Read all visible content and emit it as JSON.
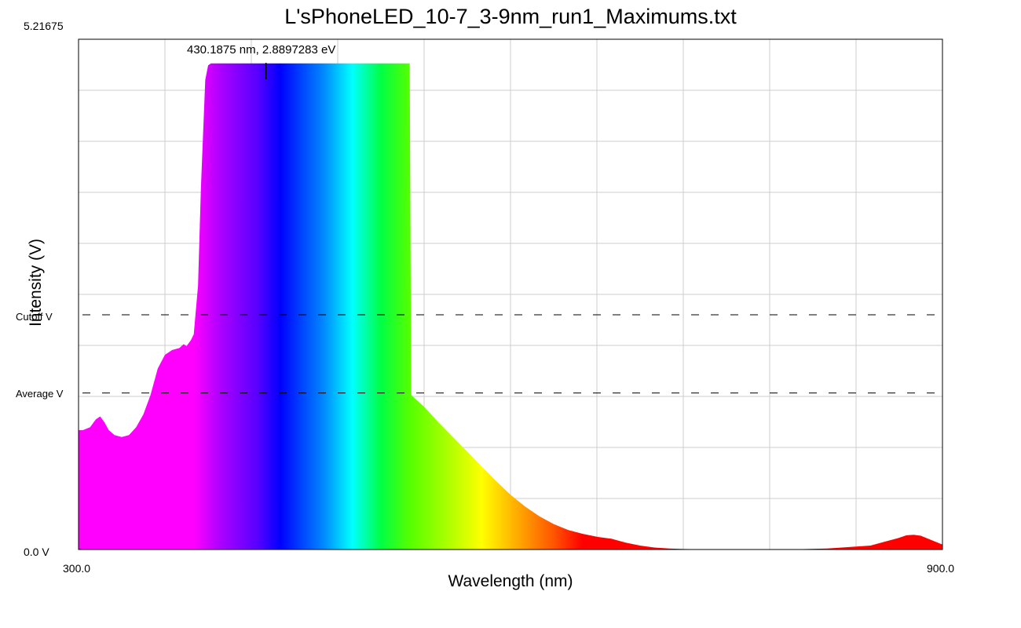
{
  "chart_data": {
    "type": "area",
    "title": "L'sPhoneLED_10-7_3-9nm_run1_Maximums.txt",
    "xlabel": "Wavelength (nm)",
    "ylabel": "Intensity (V)",
    "xlim": [
      300.0,
      900.0
    ],
    "ylim": [
      0.0,
      5.21675
    ],
    "x_tick_labels": [
      "300.0",
      "900.0"
    ],
    "y_tick_labels": [
      "0.0 V",
      "5.21675"
    ],
    "grid": true,
    "fill": "visible-spectrum gradient under curve",
    "reference_lines": [
      {
        "label": "Cutoff V",
        "value": 2.4
      },
      {
        "label": "Average V",
        "value": 1.6
      }
    ],
    "peak_annotation": {
      "text": "430.1875 nm, 2.8897283 eV",
      "x": 430.1875
    },
    "series": [
      {
        "x": [
          300,
          303,
          308,
          312,
          315,
          318,
          321,
          325,
          330,
          335,
          340,
          345,
          350,
          355,
          360,
          365,
          370,
          373,
          375,
          378,
          380,
          383,
          385,
          388,
          390,
          392,
          393,
          394,
          396,
          398,
          399,
          400,
          420,
          450,
          480,
          500,
          520,
          530,
          531,
          540,
          550,
          560,
          570,
          580,
          590,
          600,
          610,
          620,
          630,
          640,
          650,
          660,
          670,
          680,
          690,
          700,
          710,
          720,
          730,
          750,
          770,
          790,
          800,
          820,
          850,
          860,
          870,
          875,
          880,
          885,
          890,
          895,
          900
        ],
        "values": [
          1.22,
          1.22,
          1.25,
          1.33,
          1.36,
          1.3,
          1.22,
          1.17,
          1.15,
          1.17,
          1.25,
          1.38,
          1.58,
          1.85,
          1.99,
          2.04,
          2.06,
          2.1,
          2.08,
          2.14,
          2.2,
          2.7,
          3.7,
          4.8,
          4.95,
          4.97,
          4.97,
          4.97,
          4.97,
          4.97,
          4.97,
          4.97,
          4.97,
          4.97,
          4.97,
          4.97,
          4.97,
          4.97,
          1.58,
          1.46,
          1.3,
          1.15,
          1.0,
          0.85,
          0.7,
          0.56,
          0.44,
          0.34,
          0.26,
          0.2,
          0.16,
          0.13,
          0.11,
          0.07,
          0.04,
          0.02,
          0.01,
          0.005,
          0.003,
          0.002,
          0.002,
          0.002,
          0.003,
          0.01,
          0.04,
          0.08,
          0.12,
          0.145,
          0.15,
          0.14,
          0.11,
          0.08,
          0.05
        ]
      }
    ]
  },
  "colors": {
    "grid": "#cccccc",
    "background": "#ffffff",
    "axis": "#000000",
    "spectrum_stops": [
      {
        "nm": 300,
        "color": "#ff00ff"
      },
      {
        "nm": 380,
        "color": "#ff00ff"
      },
      {
        "nm": 400,
        "color": "#a600ff"
      },
      {
        "nm": 425,
        "color": "#5500ff"
      },
      {
        "nm": 440,
        "color": "#0000ff"
      },
      {
        "nm": 470,
        "color": "#0088ff"
      },
      {
        "nm": 490,
        "color": "#00ffff"
      },
      {
        "nm": 510,
        "color": "#00ff44"
      },
      {
        "nm": 530,
        "color": "#55ff00"
      },
      {
        "nm": 560,
        "color": "#b8ff00"
      },
      {
        "nm": 580,
        "color": "#ffff00"
      },
      {
        "nm": 600,
        "color": "#ffbb00"
      },
      {
        "nm": 630,
        "color": "#ff5500"
      },
      {
        "nm": 650,
        "color": "#ff0000"
      },
      {
        "nm": 900,
        "color": "#ff0000"
      }
    ]
  }
}
